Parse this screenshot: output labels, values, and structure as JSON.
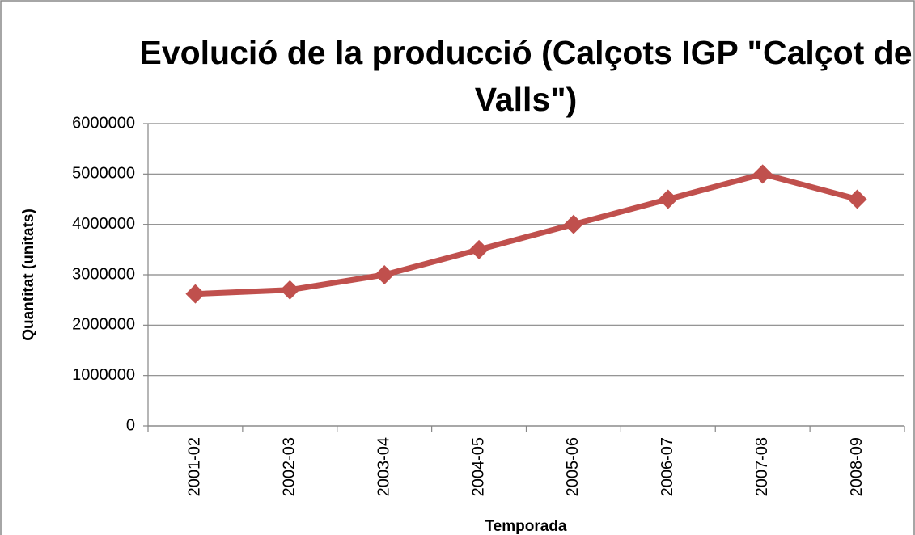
{
  "chart_data": {
    "type": "line",
    "title": "Evolució de la producció (Calçots IGP \"Calçot de Valls\")",
    "x_label": "Temporada",
    "y_label": "Quantitat (unitats)",
    "categories": [
      "2001-02",
      "2002-03",
      "2003-04",
      "2004-05",
      "2005-06",
      "2006-07",
      "2007-08",
      "2008-09"
    ],
    "values": [
      2620000,
      2700000,
      3000000,
      3500000,
      4000000,
      4500000,
      5000000,
      4500000
    ],
    "color": "#c0504d",
    "ylim": [
      0,
      6000000
    ],
    "yticks": [
      0,
      1000000,
      2000000,
      3000000,
      4000000,
      5000000,
      6000000
    ],
    "grid": true
  }
}
